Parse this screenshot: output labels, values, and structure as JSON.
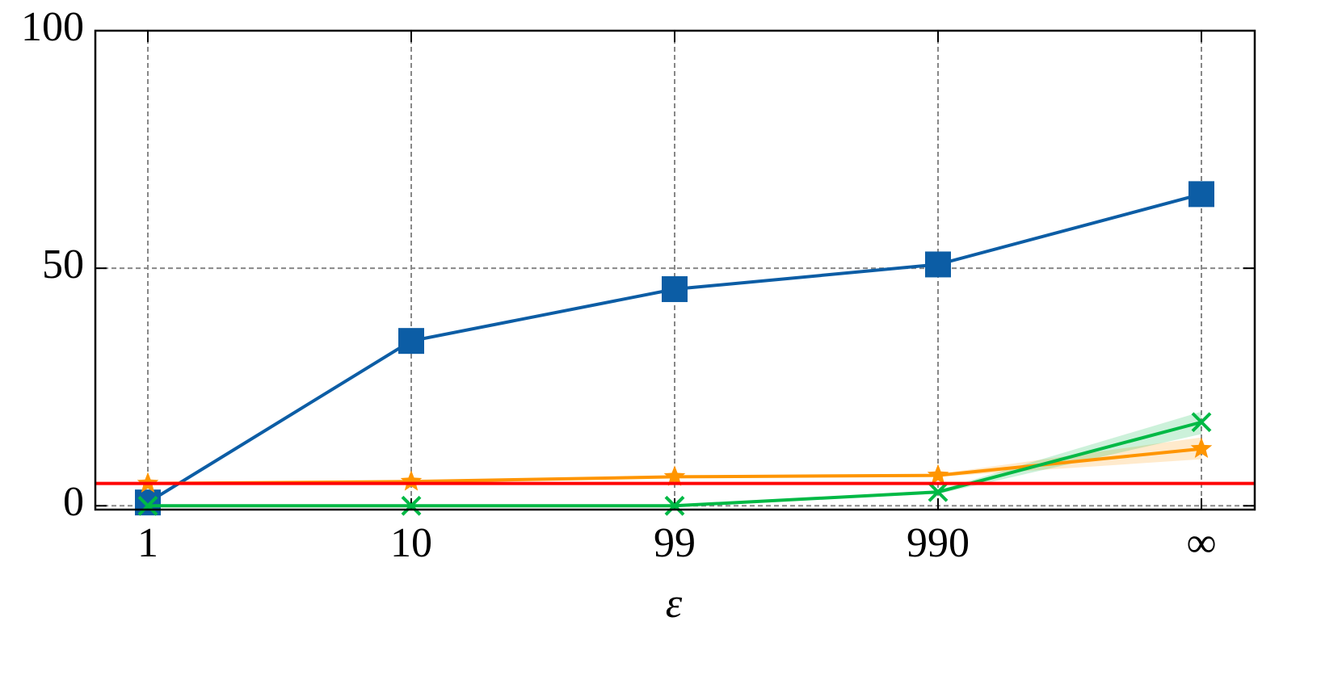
{
  "chart_data": {
    "type": "line",
    "x_label": "ε",
    "categories": [
      "1",
      "10",
      "99",
      "990",
      "∞"
    ],
    "ylim": [
      -0.8,
      100
    ],
    "yticks": [
      0,
      50,
      100
    ],
    "grid": true,
    "series": [
      {
        "color": "#0C5DA5",
        "marker": "square",
        "values": [
          0.7,
          34.7,
          45.6,
          50.8,
          65.6
        ],
        "lower": [
          0.7,
          34.7,
          45.6,
          50.6,
          65.2
        ],
        "upper": [
          0.7,
          34.7,
          45.6,
          51.0,
          66.0
        ]
      },
      {
        "color": "#FF9500",
        "marker": "star",
        "values": [
          4.7,
          5.1,
          6.1,
          6.4,
          12.0
        ],
        "lower": [
          4.7,
          5.1,
          6.0,
          6.1,
          9.8
        ],
        "upper": [
          4.7,
          5.1,
          6.2,
          6.7,
          14.4
        ]
      },
      {
        "color": "#00B945",
        "marker": "x",
        "values": [
          0,
          0,
          0,
          2.9,
          17.6
        ],
        "lower": [
          0,
          0,
          0,
          2.5,
          15.1
        ],
        "upper": [
          0,
          0,
          0,
          3.3,
          19.8
        ]
      }
    ],
    "hline": {
      "value": 4.7,
      "color": "#FF0000"
    }
  }
}
